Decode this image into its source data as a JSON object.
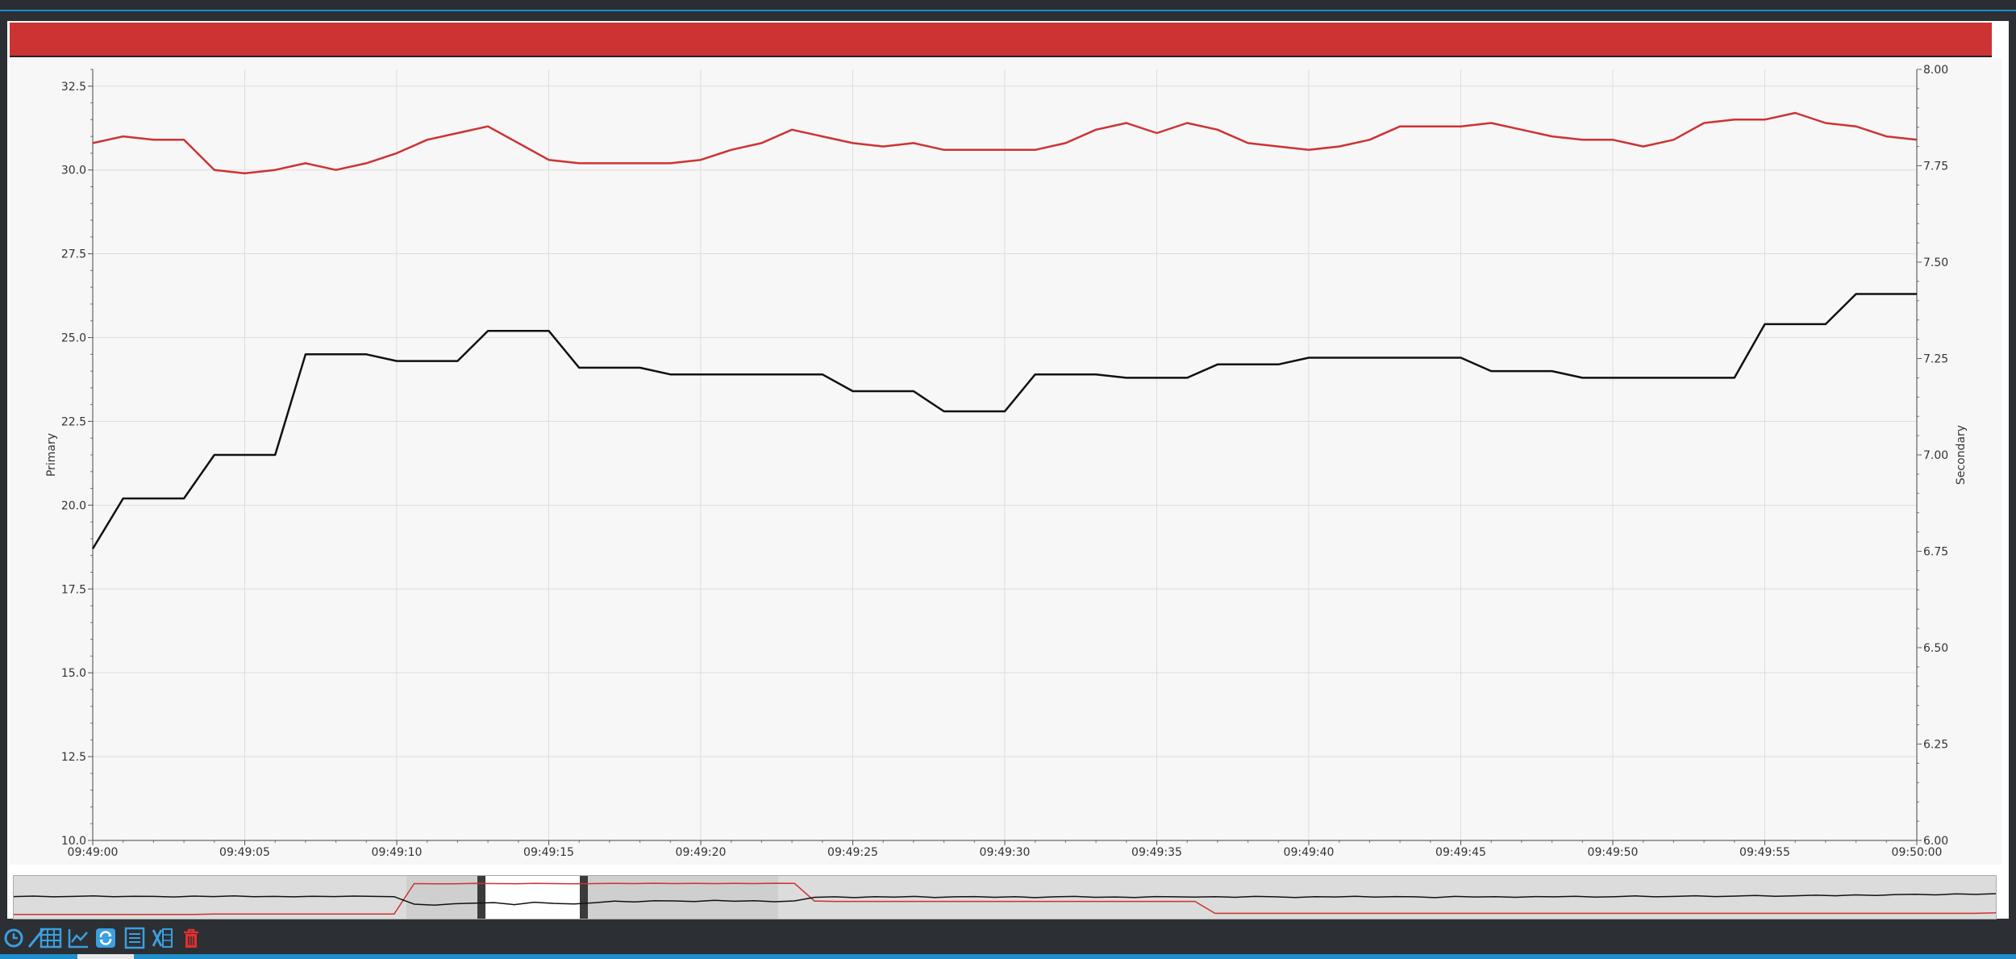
{
  "window": {
    "title_bar_color": "#cc3333",
    "accent": "#1f8ecd"
  },
  "chart_data": {
    "type": "line",
    "title": "",
    "xlabel": "",
    "ylabel": "Primary",
    "y2label": "Secondary",
    "ylim": [
      10.0,
      33.0
    ],
    "y2lim": [
      6.0,
      8.0
    ],
    "yticks": [
      "10.0",
      "12.5",
      "15.0",
      "17.5",
      "20.0",
      "22.5",
      "25.0",
      "27.5",
      "30.0",
      "32.5"
    ],
    "y2ticks": [
      "6.00",
      "6.25",
      "6.50",
      "6.75",
      "7.00",
      "7.25",
      "7.50",
      "7.75",
      "8.00"
    ],
    "xticks": [
      "09:49:00",
      "09:49:05",
      "09:49:10",
      "09:49:15",
      "09:49:20",
      "09:49:25",
      "09:49:30",
      "09:49:35",
      "09:49:40",
      "09:49:45",
      "09:49:50",
      "09:49:55",
      "09:50:00"
    ],
    "x_seconds": [
      0,
      1,
      2,
      3,
      4,
      5,
      6,
      7,
      8,
      9,
      10,
      11,
      12,
      13,
      14,
      15,
      16,
      17,
      18,
      19,
      20,
      21,
      22,
      23,
      24,
      25,
      26,
      27,
      28,
      29,
      30,
      31,
      32,
      33,
      34,
      35,
      36,
      37,
      38,
      39,
      40,
      41,
      42,
      43,
      44,
      45,
      46,
      47,
      48,
      49,
      50,
      51,
      52,
      53,
      54,
      55,
      56,
      57,
      58,
      59,
      60
    ],
    "grid": true,
    "series": [
      {
        "axis": "primary",
        "color": "#cc3333",
        "values": [
          30.8,
          31.0,
          30.9,
          30.9,
          30.0,
          29.9,
          30.0,
          30.2,
          30.0,
          30.2,
          30.5,
          30.9,
          31.1,
          31.3,
          30.8,
          30.3,
          30.2,
          30.2,
          30.2,
          30.2,
          30.3,
          30.6,
          30.8,
          31.2,
          31.0,
          30.8,
          30.7,
          30.8,
          30.6,
          30.6,
          30.6,
          30.6,
          30.8,
          31.2,
          31.4,
          31.1,
          31.4,
          31.2,
          30.8,
          30.7,
          30.6,
          30.7,
          30.9,
          31.3,
          31.3,
          31.3,
          31.4,
          31.2,
          31.0,
          30.9,
          30.9,
          30.7,
          30.9,
          31.4,
          31.5,
          31.5,
          31.7,
          31.4,
          31.3,
          31.0,
          30.9
        ]
      },
      {
        "axis": "primary",
        "color": "#111111",
        "values": [
          18.7,
          20.2,
          20.2,
          20.2,
          21.5,
          21.5,
          21.5,
          24.5,
          24.5,
          24.5,
          24.3,
          24.3,
          24.3,
          25.2,
          25.2,
          25.2,
          24.1,
          24.1,
          24.1,
          23.9,
          23.9,
          23.9,
          23.9,
          23.9,
          23.9,
          23.4,
          23.4,
          23.4,
          22.8,
          22.8,
          22.8,
          23.9,
          23.9,
          23.9,
          23.8,
          23.8,
          23.8,
          24.2,
          24.2,
          24.2,
          24.4,
          24.4,
          24.4,
          24.4,
          24.4,
          24.4,
          24.0,
          24.0,
          24.0,
          23.8,
          23.8,
          23.8,
          23.8,
          23.8,
          23.8,
          25.4,
          25.4,
          25.4,
          26.3,
          26.3,
          26.3
        ]
      }
    ]
  },
  "overview_data": {
    "red": [
      10.8,
      10.8,
      10.8,
      10.8,
      10.8,
      10.8,
      10.8,
      10.8,
      10.8,
      10.8,
      11.0,
      11.0,
      11.0,
      11.0,
      11.0,
      11.0,
      11.0,
      11.0,
      11.0,
      11.0,
      31.0,
      30.8,
      30.9,
      31.1,
      31.0,
      30.9,
      31.1,
      31.0,
      30.9,
      31.0,
      31.1,
      31.0,
      31.2,
      31.0,
      31.1,
      31.0,
      31.1,
      31.0,
      31.2,
      31.1,
      19.5,
      19.3,
      19.3,
      19.3,
      19.3,
      19.3,
      19.3,
      19.3,
      19.3,
      19.3,
      19.3,
      19.3,
      19.3,
      19.3,
      19.3,
      19.3,
      19.3,
      19.3,
      19.3,
      19.3,
      11.5,
      11.5,
      11.5,
      11.5,
      11.5,
      11.5,
      11.5,
      11.5,
      11.5,
      11.5,
      11.5,
      11.5,
      11.5,
      11.5,
      11.5,
      11.5,
      11.5,
      11.5,
      11.5,
      11.5,
      11.5,
      11.5,
      11.5,
      11.5,
      11.5,
      11.5,
      11.5,
      11.5,
      11.5,
      11.5,
      11.5,
      11.5,
      11.5,
      11.5,
      11.5,
      11.5,
      11.5,
      11.5,
      11.5,
      11.8
    ],
    "black": [
      22.5,
      22.8,
      22.3,
      22.6,
      22.9,
      22.4,
      22.7,
      22.6,
      22.2,
      22.8,
      22.5,
      22.9,
      22.4,
      22.6,
      22.3,
      22.7,
      22.5,
      22.8,
      22.6,
      22.4,
      17.5,
      16.8,
      17.8,
      18.2,
      18.5,
      17.2,
      18.8,
      18.0,
      17.6,
      18.4,
      19.5,
      19.0,
      19.8,
      19.6,
      19.2,
      20.0,
      19.4,
      19.8,
      19.1,
      19.6,
      22.0,
      22.3,
      21.8,
      22.4,
      22.1,
      22.6,
      21.9,
      22.3,
      22.5,
      22.0,
      22.4,
      21.8,
      22.3,
      22.6,
      22.0,
      22.2,
      21.9,
      22.5,
      22.3,
      22.1,
      22.4,
      22.0,
      22.6,
      22.3,
      21.9,
      22.4,
      22.2,
      22.7,
      22.1,
      22.5,
      22.3,
      21.8,
      22.6,
      22.2,
      22.4,
      22.0,
      22.5,
      22.3,
      22.7,
      22.1,
      22.4,
      22.9,
      22.3,
      22.6,
      23.0,
      22.5,
      22.8,
      23.2,
      22.7,
      23.0,
      23.4,
      23.0,
      23.6,
      23.2,
      23.8,
      24.0,
      23.6,
      24.2,
      23.9,
      24.4
    ],
    "ylim": [
      8,
      36
    ],
    "selection_color": "#ffffff",
    "background": "#dcdcdc"
  },
  "toolbar": {
    "buttons": [
      {
        "name": "clock-icon",
        "color": "#3aa0e0"
      },
      {
        "name": "pen-icon",
        "color": "#3aa0e0"
      },
      {
        "name": "grid-icon",
        "color": "#3aa0e0"
      },
      {
        "name": "chart-icon",
        "color": "#3aa0e0"
      },
      {
        "name": "refresh-icon",
        "color": "#3aa0e0"
      },
      {
        "name": "list-icon",
        "color": "#3aa0e0"
      },
      {
        "name": "excel-icon",
        "color": "#3aa0e0"
      },
      {
        "name": "trash-icon",
        "color": "#e03030"
      }
    ]
  }
}
